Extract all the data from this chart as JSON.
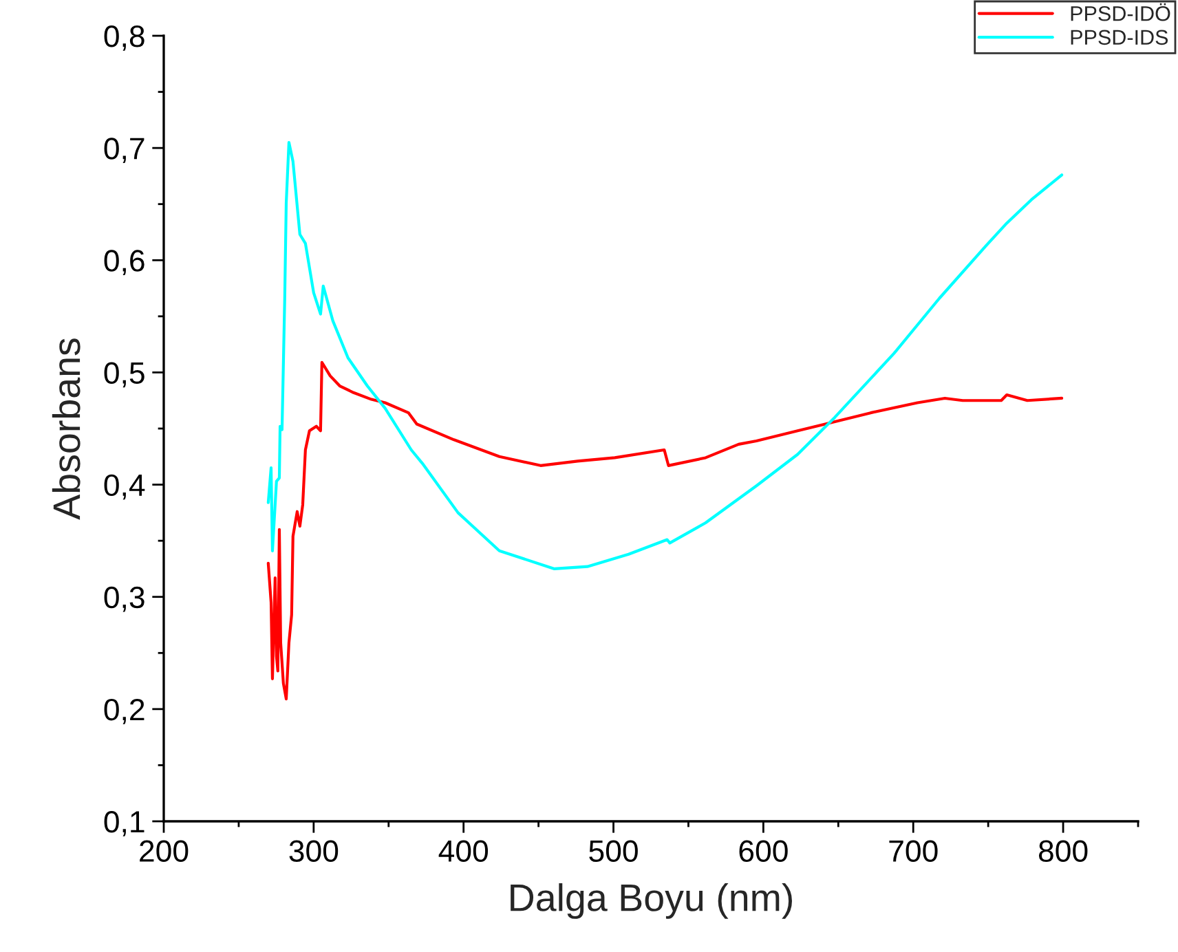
{
  "chart_data": {
    "type": "line",
    "xlabel": "Dalga Boyu (nm)",
    "ylabel": "Absorbans",
    "xlim": [
      200,
      850
    ],
    "xticks": [
      200,
      300,
      400,
      500,
      600,
      700,
      800
    ],
    "ylim": [
      0.1,
      0.8
    ],
    "yticks": [
      {
        "value": 0.1,
        "label": "0,1"
      },
      {
        "value": 0.2,
        "label": "0,2"
      },
      {
        "value": 0.3,
        "label": "0,3"
      },
      {
        "value": 0.4,
        "label": "0,4"
      },
      {
        "value": 0.5,
        "label": "0,5"
      },
      {
        "value": 0.6,
        "label": "0,6"
      },
      {
        "value": 0.7,
        "label": "0,7"
      },
      {
        "value": 0.8,
        "label": "0,8"
      }
    ],
    "grid": false,
    "legend": "top right",
    "marker": "none",
    "line_style": "solid",
    "series": [
      {
        "name": "PPSD-IDÖ",
        "color": "#ff0000",
        "x": [
          269.7,
          271.6,
          272.5,
          274.3,
          275.2,
          276.1,
          277.1,
          278.0,
          279.8,
          281.7,
          283.5,
          285.3,
          286.2,
          289.0,
          290.8,
          292.7,
          294.5,
          297.2,
          301.8,
          304.6,
          305.5,
          311.0,
          317.4,
          326.6,
          338.5,
          347.7,
          363.3,
          368.8,
          393.6,
          423.9,
          451.4,
          476.1,
          500.9,
          533.9,
          536.7,
          561.5,
          583.5,
          595.4,
          622.9,
          641.3,
          671.6,
          702.8,
          721.1,
          733.0,
          758.7,
          762.4,
          776.1,
          799.1
        ],
        "values": [
          0.33,
          0.295,
          0.227,
          0.317,
          0.247,
          0.234,
          0.36,
          0.259,
          0.223,
          0.209,
          0.259,
          0.284,
          0.354,
          0.376,
          0.363,
          0.382,
          0.431,
          0.448,
          0.452,
          0.448,
          0.509,
          0.497,
          0.488,
          0.482,
          0.476,
          0.473,
          0.464,
          0.454,
          0.44,
          0.425,
          0.417,
          0.421,
          0.424,
          0.431,
          0.417,
          0.424,
          0.436,
          0.439,
          0.448,
          0.454,
          0.464,
          0.473,
          0.477,
          0.475,
          0.475,
          0.48,
          0.475,
          0.477
        ]
      },
      {
        "name": "PPSD-IDS",
        "color": "#00ffff",
        "x": [
          269.7,
          271.6,
          272.5,
          275.2,
          277.1,
          277.6,
          278.9,
          280.7,
          281.7,
          283.5,
          286.2,
          290.8,
          294.5,
          300.0,
          304.6,
          306.4,
          312.8,
          322.9,
          335.8,
          347.7,
          365.1,
          372.5,
          396.3,
          423.9,
          460.6,
          482.6,
          510.1,
          535.8,
          537.6,
          561.5,
          595.4,
          622.9,
          647.7,
          687.2,
          717.4,
          748.6,
          762.4,
          778.9,
          799.1
        ],
        "values": [
          0.384,
          0.415,
          0.341,
          0.403,
          0.406,
          0.452,
          0.449,
          0.566,
          0.651,
          0.705,
          0.688,
          0.623,
          0.615,
          0.571,
          0.552,
          0.577,
          0.546,
          0.513,
          0.488,
          0.468,
          0.431,
          0.419,
          0.375,
          0.341,
          0.325,
          0.327,
          0.338,
          0.351,
          0.348,
          0.366,
          0.399,
          0.427,
          0.46,
          0.517,
          0.566,
          0.613,
          0.633,
          0.654,
          0.676
        ]
      }
    ]
  }
}
